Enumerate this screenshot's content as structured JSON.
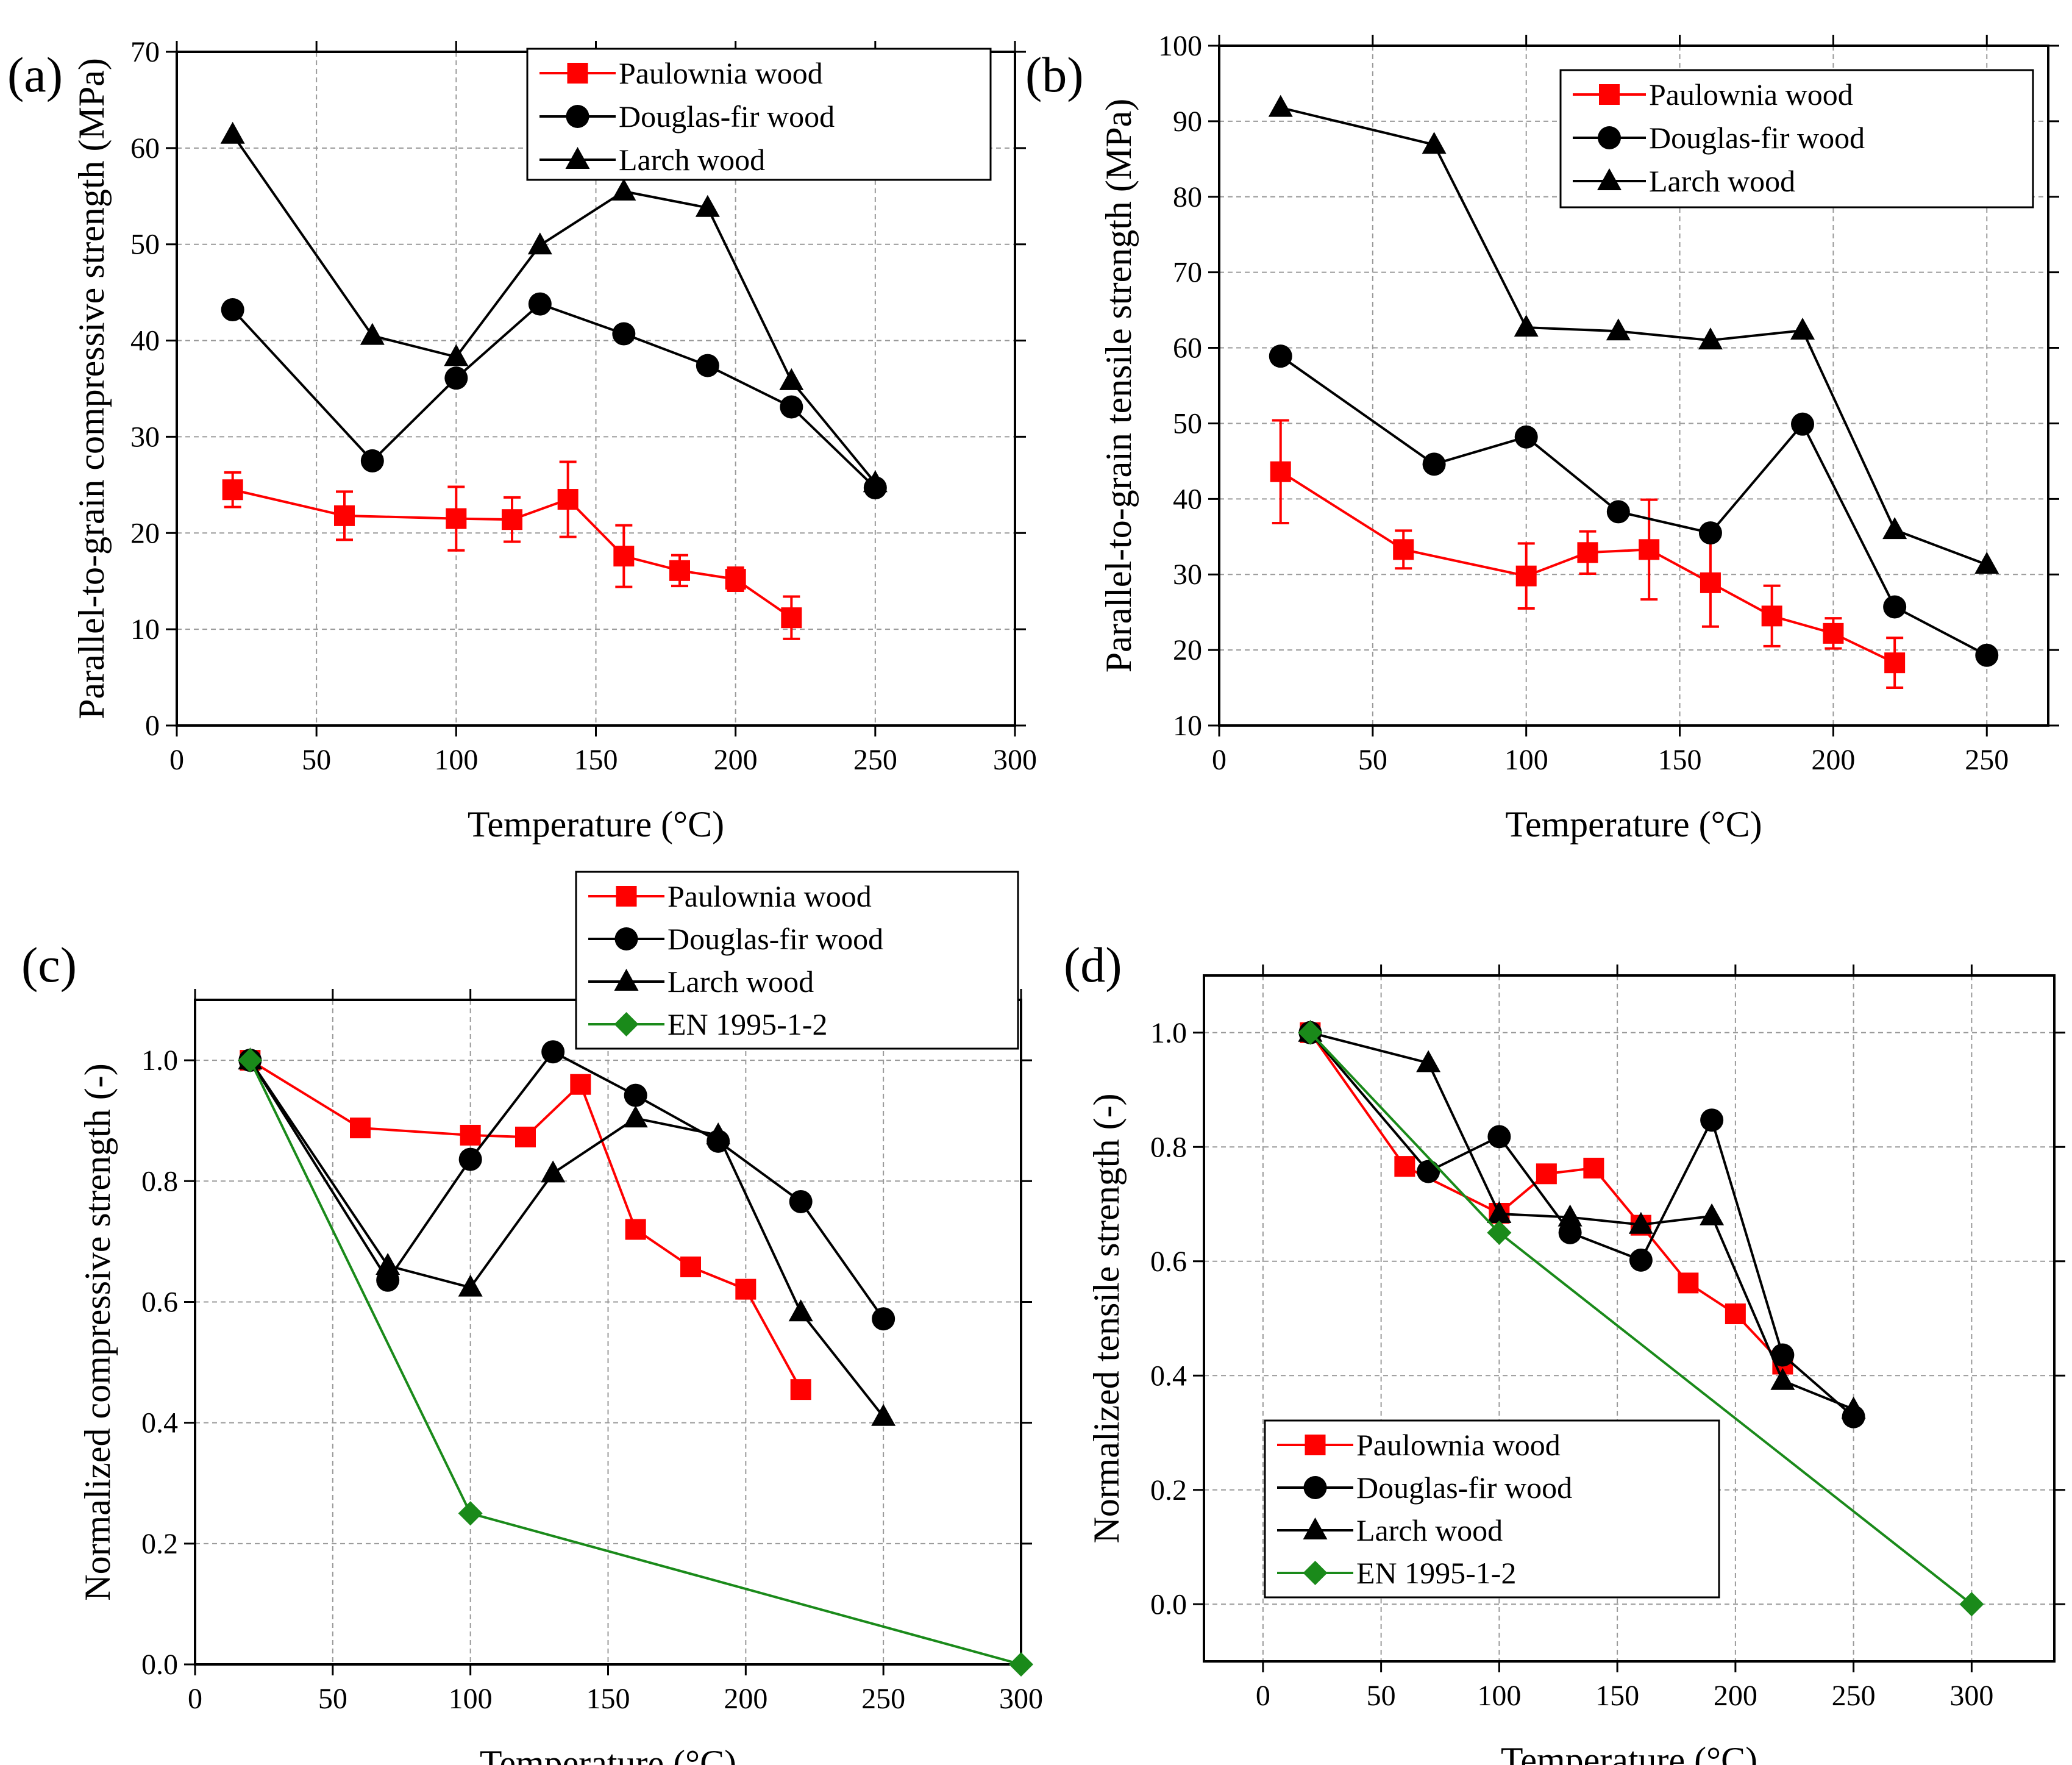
{
  "chart_data": [
    {
      "panel_label": "(a)",
      "type": "line",
      "xlabel": "Temperature (°C)",
      "ylabel": "Parallel-to-grain compressive strength (MPa)",
      "xlim": [
        0,
        300
      ],
      "ylim": [
        0,
        70
      ],
      "xticks": [
        0,
        50,
        100,
        150,
        200,
        250,
        300
      ],
      "yticks": [
        0,
        10,
        20,
        30,
        40,
        50,
        60,
        70
      ],
      "grid": true,
      "legend_position": "top-right",
      "series": [
        {
          "name": "Paulownia wood",
          "color": "#ff0000",
          "marker": "square",
          "x": [
            20,
            60,
            100,
            120,
            140,
            160,
            180,
            200,
            220
          ],
          "y": [
            24.5,
            21.8,
            21.5,
            21.4,
            23.5,
            17.6,
            16.1,
            15.2,
            11.2
          ],
          "err": [
            1.8,
            2.5,
            3.3,
            2.3,
            3.9,
            3.2,
            1.6,
            1.2,
            2.2
          ]
        },
        {
          "name": "Douglas-fir wood",
          "color": "#000000",
          "marker": "circle",
          "x": [
            20,
            70,
            100,
            130,
            160,
            190,
            220,
            250
          ],
          "y": [
            43.2,
            27.5,
            36.1,
            43.8,
            40.7,
            37.4,
            33.1,
            24.7
          ]
        },
        {
          "name": "Larch wood",
          "color": "#000000",
          "marker": "triangle",
          "x": [
            20,
            70,
            100,
            130,
            160,
            190,
            220,
            250
          ],
          "y": [
            61.4,
            40.5,
            38.3,
            49.9,
            55.5,
            53.8,
            35.8,
            25.2
          ]
        }
      ]
    },
    {
      "panel_label": "(b)",
      "type": "line",
      "xlabel": "Temperature (°C)",
      "ylabel": "Parallel-to-grain tensile strength (MPa)",
      "xlim": [
        0,
        270
      ],
      "ylim": [
        10,
        100
      ],
      "xticks": [
        0,
        50,
        100,
        150,
        200,
        250
      ],
      "yticks": [
        10,
        20,
        30,
        40,
        50,
        60,
        70,
        80,
        90,
        100
      ],
      "grid": true,
      "legend_position": "top-right",
      "series": [
        {
          "name": "Paulownia wood",
          "color": "#ff0000",
          "marker": "square",
          "x": [
            20,
            60,
            100,
            120,
            140,
            160,
            180,
            200,
            220
          ],
          "y": [
            43.6,
            33.3,
            29.8,
            32.9,
            33.3,
            28.9,
            24.5,
            22.2,
            18.3
          ],
          "err": [
            6.8,
            2.5,
            4.3,
            2.8,
            6.6,
            5.8,
            4.0,
            2.0,
            3.3
          ]
        },
        {
          "name": "Douglas-fir wood",
          "color": "#000000",
          "marker": "circle",
          "x": [
            20,
            70,
            100,
            130,
            160,
            190,
            220,
            250
          ],
          "y": [
            58.9,
            44.6,
            48.2,
            38.3,
            35.5,
            49.9,
            25.7,
            19.3
          ]
        },
        {
          "name": "Larch wood",
          "color": "#000000",
          "marker": "triangle",
          "x": [
            20,
            70,
            100,
            130,
            160,
            190,
            220,
            250
          ],
          "y": [
            91.8,
            86.9,
            62.7,
            62.2,
            61.0,
            62.3,
            35.9,
            31.3
          ]
        }
      ]
    },
    {
      "panel_label": "(c)",
      "type": "line",
      "xlabel": "Temperature (°C)",
      "ylabel": "Normalized compressive strength (-)",
      "xlim": [
        0,
        300
      ],
      "ylim": [
        0,
        1.1
      ],
      "xticks": [
        0,
        50,
        100,
        150,
        200,
        250,
        300
      ],
      "yticks": [
        0.0,
        0.2,
        0.4,
        0.6,
        0.8,
        1.0
      ],
      "ytick_labels": [
        "0.0",
        "0.2",
        "0.4",
        "0.6",
        "0.8",
        "1.0"
      ],
      "grid": true,
      "legend_position": "top-right",
      "series": [
        {
          "name": "Paulownia wood",
          "color": "#ff0000",
          "marker": "square",
          "x": [
            20,
            60,
            100,
            120,
            140,
            160,
            180,
            200,
            220
          ],
          "y": [
            1.0,
            0.888,
            0.876,
            0.873,
            0.96,
            0.72,
            0.658,
            0.621,
            0.455
          ]
        },
        {
          "name": "Douglas-fir wood",
          "color": "#000000",
          "marker": "circle",
          "x": [
            20,
            70,
            100,
            130,
            160,
            190,
            220,
            250
          ],
          "y": [
            1.0,
            0.636,
            0.836,
            1.014,
            0.942,
            0.866,
            0.766,
            0.572
          ]
        },
        {
          "name": "Larch wood",
          "color": "#000000",
          "marker": "triangle",
          "x": [
            20,
            70,
            100,
            130,
            160,
            190,
            220,
            250
          ],
          "y": [
            1.0,
            0.66,
            0.624,
            0.813,
            0.904,
            0.876,
            0.583,
            0.41
          ]
        },
        {
          "name": "EN 1995-1-2",
          "color": "#1a8a1a",
          "marker": "diamond",
          "x": [
            20,
            100,
            300
          ],
          "y": [
            1.0,
            0.25,
            0.0
          ]
        }
      ]
    },
    {
      "panel_label": "(d)",
      "type": "line",
      "xlabel": "Temperature (°C)",
      "ylabel": "Normalized tensile strength (-)",
      "xlim": [
        -25,
        335
      ],
      "ylim": [
        -0.1,
        1.1
      ],
      "xticks": [
        0,
        50,
        100,
        150,
        200,
        250,
        300
      ],
      "yticks": [
        0.0,
        0.2,
        0.4,
        0.6,
        0.8,
        1.0
      ],
      "ytick_labels": [
        "0.0",
        "0.2",
        "0.4",
        "0.6",
        "0.8",
        "1.0"
      ],
      "grid": true,
      "legend_position": "bottom-left",
      "series": [
        {
          "name": "Paulownia wood",
          "color": "#ff0000",
          "marker": "square",
          "x": [
            20,
            60,
            100,
            120,
            140,
            160,
            180,
            200,
            220
          ],
          "y": [
            1.0,
            0.766,
            0.684,
            0.753,
            0.763,
            0.663,
            0.562,
            0.508,
            0.42
          ]
        },
        {
          "name": "Douglas-fir wood",
          "color": "#000000",
          "marker": "circle",
          "x": [
            20,
            70,
            100,
            130,
            160,
            190,
            220,
            250
          ],
          "y": [
            1.0,
            0.757,
            0.818,
            0.65,
            0.602,
            0.847,
            0.436,
            0.328
          ]
        },
        {
          "name": "Larch wood",
          "color": "#000000",
          "marker": "triangle",
          "x": [
            20,
            70,
            100,
            130,
            160,
            190,
            220,
            250
          ],
          "y": [
            1.0,
            0.947,
            0.683,
            0.677,
            0.664,
            0.679,
            0.391,
            0.341
          ]
        },
        {
          "name": "EN 1995-1-2",
          "color": "#1a8a1a",
          "marker": "diamond",
          "x": [
            20,
            100,
            300
          ],
          "y": [
            1.0,
            0.65,
            0.0
          ]
        }
      ]
    }
  ]
}
